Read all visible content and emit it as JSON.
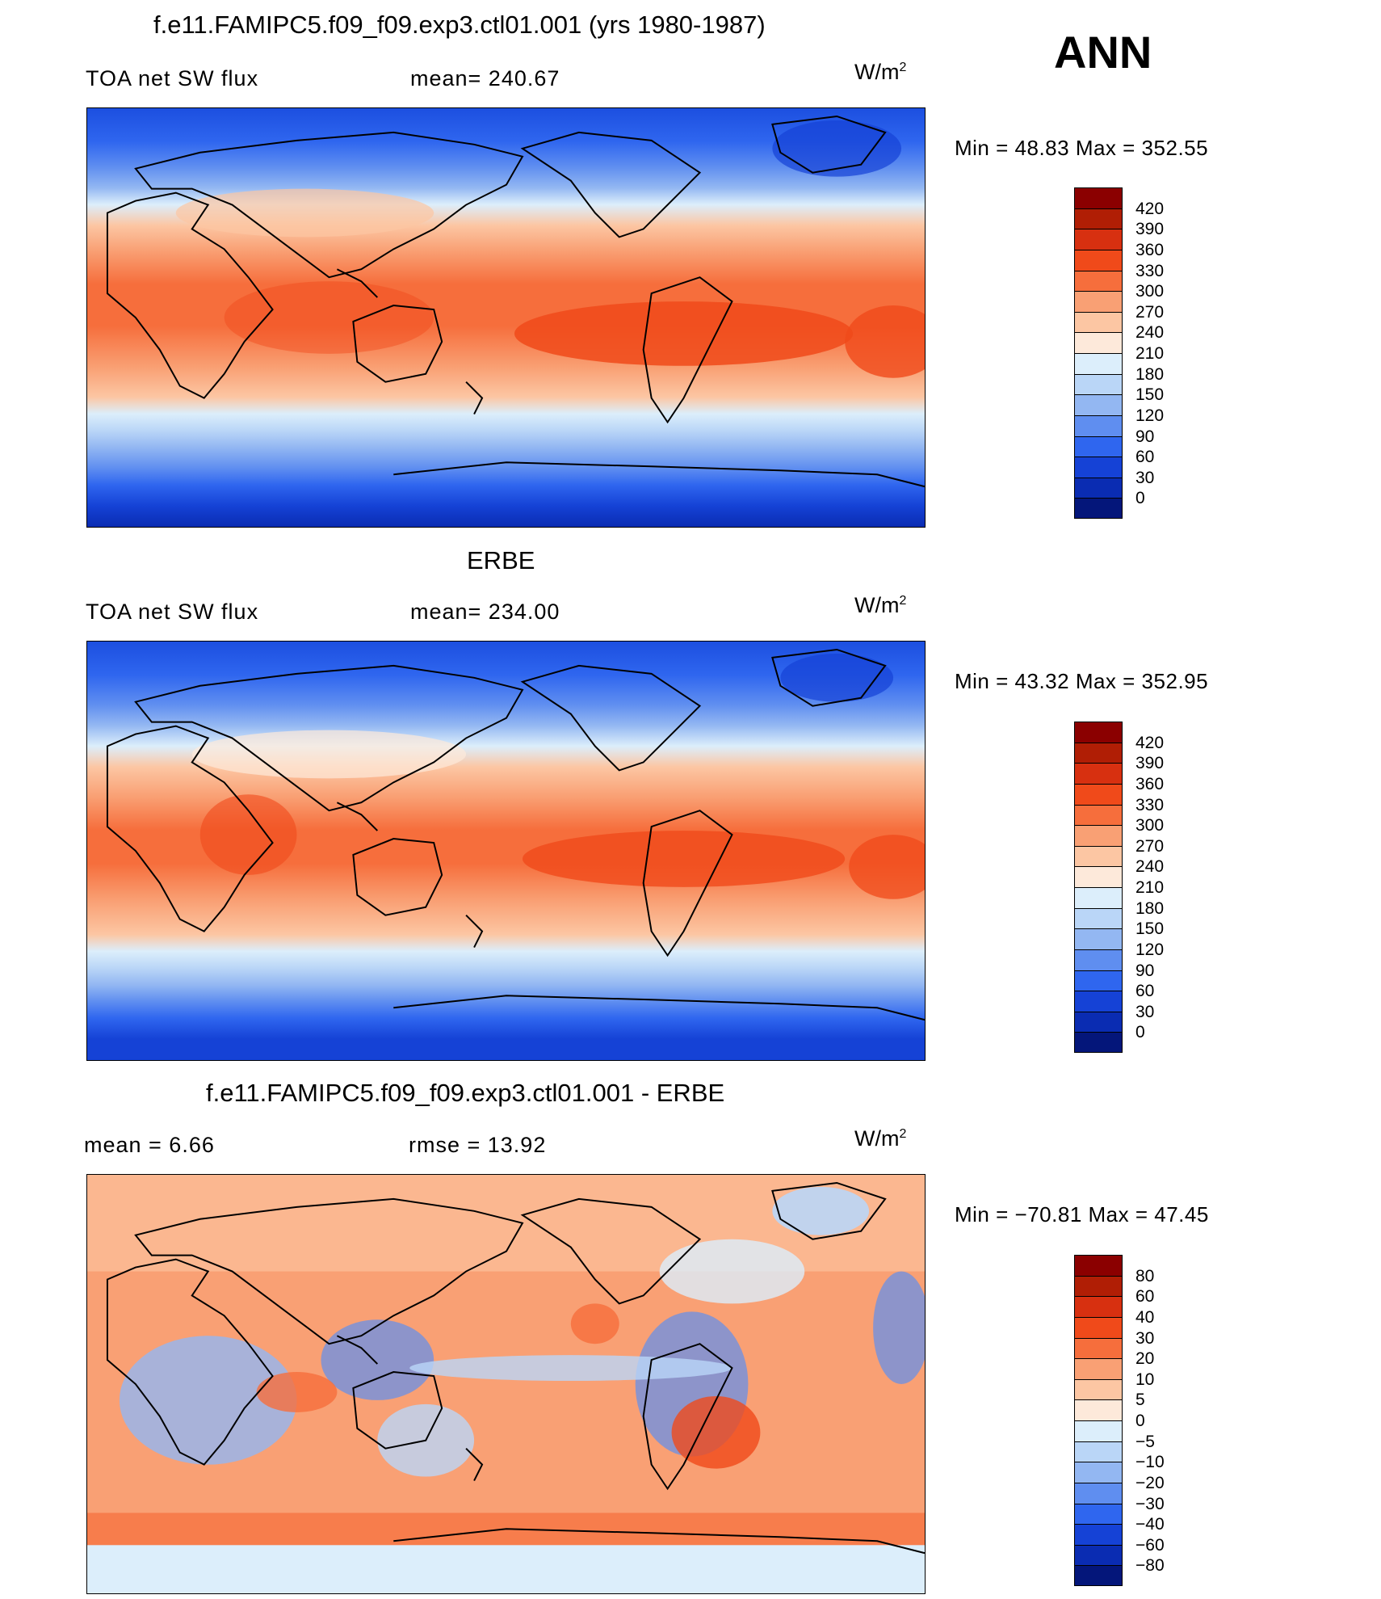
{
  "annual_label": "ANN",
  "panels": [
    {
      "title": "f.e11.FAMIPC5.f09_f09.exp3.ctl01.001 (yrs 1980-1987)",
      "variable": "TOA net SW flux",
      "stat": "mean= 240.67",
      "unit_base": "W/m",
      "unit_exp": "2",
      "minmax": "Min =   48.83 Max = 352.55",
      "levels": [
        "420",
        "390",
        "360",
        "330",
        "300",
        "270",
        "240",
        "210",
        "180",
        "150",
        "120",
        "90",
        "60",
        "30",
        "0"
      ],
      "colors": [
        "#8b0000",
        "#b01e05",
        "#d73010",
        "#f04a1a",
        "#f66e3c",
        "#f9a074",
        "#fcc6a3",
        "#fde9da",
        "#dceefb",
        "#bad6f7",
        "#93b7f2",
        "#5f8ef0",
        "#2f66ef",
        "#1542d6",
        "#0a2cb2",
        "#04167a"
      ]
    },
    {
      "title": "ERBE",
      "variable": "TOA net SW flux",
      "stat": "mean= 234.00",
      "unit_base": "W/m",
      "unit_exp": "2",
      "minmax": "Min =   43.32 Max = 352.95",
      "levels": [
        "420",
        "390",
        "360",
        "330",
        "300",
        "270",
        "240",
        "210",
        "180",
        "150",
        "120",
        "90",
        "60",
        "30",
        "0"
      ],
      "colors": [
        "#8b0000",
        "#b01e05",
        "#d73010",
        "#f04a1a",
        "#f66e3c",
        "#f9a074",
        "#fcc6a3",
        "#fde9da",
        "#dceefb",
        "#bad6f7",
        "#93b7f2",
        "#5f8ef0",
        "#2f66ef",
        "#1542d6",
        "#0a2cb2",
        "#04167a"
      ]
    },
    {
      "title": "f.e11.FAMIPC5.f09_f09.exp3.ctl01.001 - ERBE",
      "variable": "mean =     6.66",
      "stat": "rmse =    13.92",
      "unit_base": "W/m",
      "unit_exp": "2",
      "minmax": "Min = −70.81 Max =   47.45",
      "levels": [
        "80",
        "60",
        "40",
        "30",
        "20",
        "10",
        "5",
        "0",
        "−5",
        "−10",
        "−20",
        "−30",
        "−40",
        "−60",
        "−80"
      ],
      "colors": [
        "#8b0000",
        "#b01e05",
        "#d73010",
        "#f04a1a",
        "#f66e3c",
        "#f9a074",
        "#fcc6a3",
        "#fde9da",
        "#dceefb",
        "#bad6f7",
        "#93b7f2",
        "#5f8ef0",
        "#2f66ef",
        "#1542d6",
        "#0a2cb2",
        "#04167a"
      ]
    }
  ]
}
